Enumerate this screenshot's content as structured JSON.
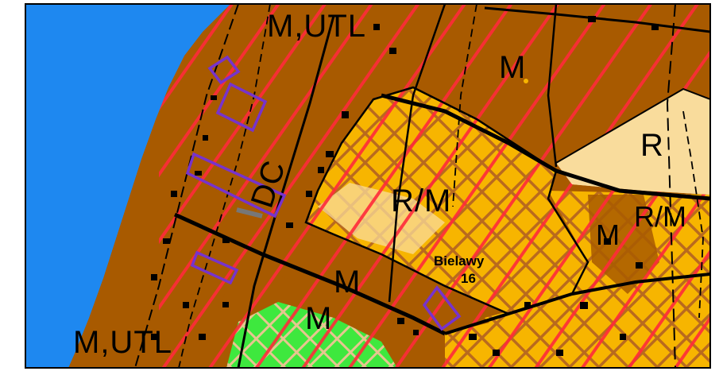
{
  "map": {
    "colors": {
      "water": "#1e88f0",
      "residential_services": "#a85a00",
      "agricultural_residential": "#f7b500",
      "agricultural": "#f9dc9c",
      "green": "#3ee83e",
      "red_hatch": "#ff2a3a",
      "brown_hatch": "#b96a1e",
      "outline": "#000000",
      "highlight": "#7733cc"
    },
    "zone_labels": [
      {
        "id": "mutl-top",
        "text": "M,UTL"
      },
      {
        "id": "m-top",
        "text": "M"
      },
      {
        "id": "r-right",
        "text": "R"
      },
      {
        "id": "dc",
        "text": "DC"
      },
      {
        "id": "rm-center",
        "text": "R/M"
      },
      {
        "id": "rm-right",
        "text": "R/M"
      },
      {
        "id": "m-right",
        "text": "M"
      },
      {
        "id": "m-mid",
        "text": "M"
      },
      {
        "id": "m-low",
        "text": "M"
      },
      {
        "id": "mutl-bottom",
        "text": "M,UTL"
      }
    ],
    "place": {
      "name": "Bielawy",
      "number": "16"
    }
  }
}
